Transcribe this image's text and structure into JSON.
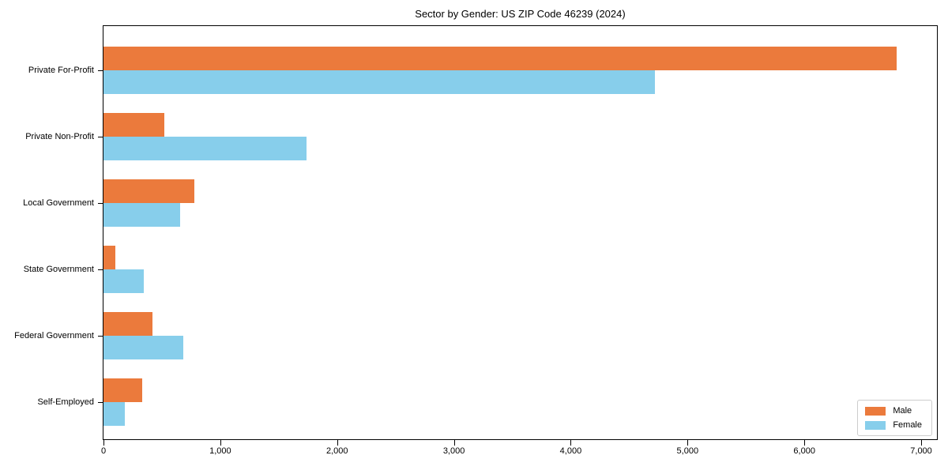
{
  "chart_data": {
    "type": "bar",
    "orientation": "horizontal",
    "title": "Sector by Gender: US ZIP Code 46239 (2024)",
    "categories": [
      "Private For-Profit",
      "Private Non-Profit",
      "Local Government",
      "State Government",
      "Federal Government",
      "Self-Employed"
    ],
    "series": [
      {
        "name": "Male",
        "color": "#EB7A3C",
        "values": [
          6790,
          520,
          775,
          100,
          420,
          330
        ]
      },
      {
        "name": "Female",
        "color": "#87CEEB",
        "values": [
          4720,
          1740,
          655,
          345,
          685,
          180
        ]
      }
    ],
    "xlabel": "",
    "ylabel": "",
    "xlim": [
      0,
      7135
    ],
    "xticks": [
      0,
      1000,
      2000,
      3000,
      4000,
      5000,
      6000,
      7000
    ],
    "xticklabels": [
      "0",
      "1,000",
      "2,000",
      "3,000",
      "4,000",
      "5,000",
      "6,000",
      "7,000"
    ],
    "grid": false,
    "background": "#ffffff",
    "legend": {
      "position": "lower right",
      "entries": [
        "Male",
        "Female"
      ]
    }
  }
}
